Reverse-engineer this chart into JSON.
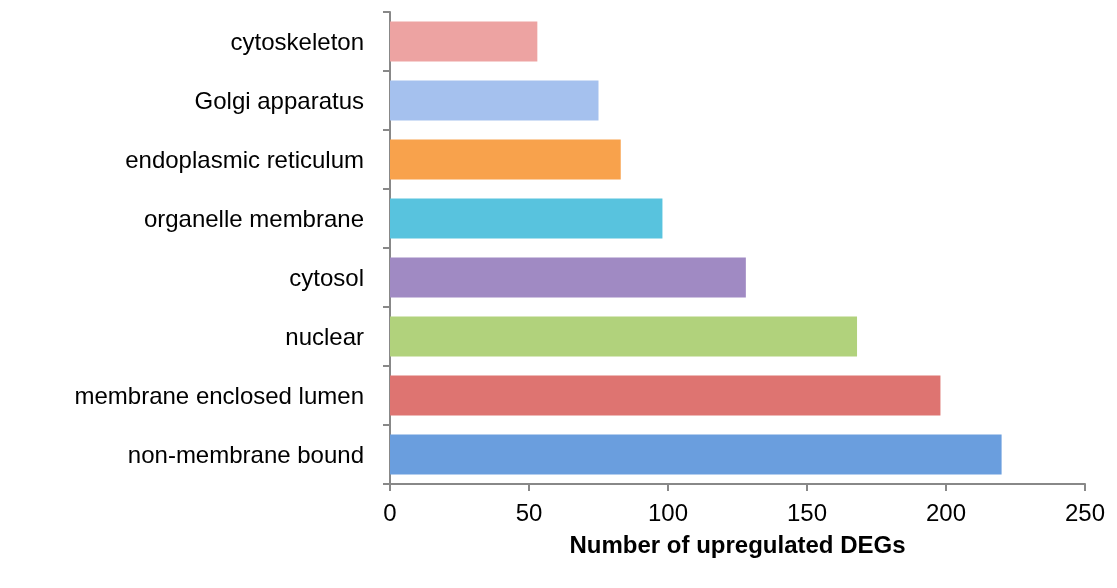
{
  "chart_data": {
    "type": "bar",
    "orientation": "horizontal",
    "xlabel": "Number of upregulated DEGs",
    "categories": [
      "cytoskeleton",
      "Golgi apparatus",
      "endoplasmic reticulum",
      "organelle membrane",
      "cytosol",
      "nuclear",
      "membrane enclosed lumen",
      "non-membrane bound"
    ],
    "values": [
      53,
      75,
      83,
      98,
      128,
      168,
      198,
      220
    ],
    "colors": [
      "#eda3a2",
      "#a5c1ee",
      "#f8a24c",
      "#58c3de",
      "#a08ac3",
      "#b1d27c",
      "#de7471",
      "#6a9ede"
    ],
    "xlim": [
      0,
      250
    ],
    "xticks": [
      0,
      50,
      100,
      150,
      200,
      250
    ],
    "grid": false
  }
}
